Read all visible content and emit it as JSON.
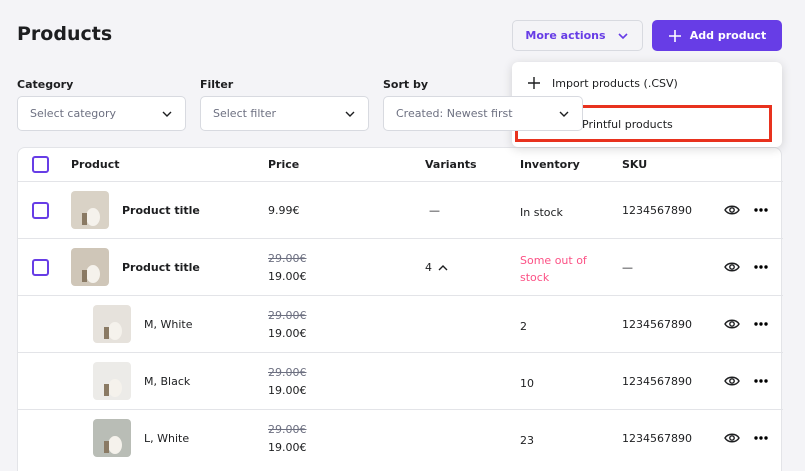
{
  "header": {
    "title": "Products",
    "more_actions": "More actions",
    "add_product": "Add product"
  },
  "filters": [
    {
      "label": "Category",
      "placeholder": "Select category"
    },
    {
      "label": "Filter",
      "placeholder": "Select filter"
    },
    {
      "label": "Sort by",
      "placeholder": "Created: Newest first"
    }
  ],
  "dropdown": {
    "items": [
      "Import products (.CSV)",
      "Sync Printful products"
    ]
  },
  "table": {
    "columns": [
      "Product",
      "Price",
      "Variants",
      "Inventory",
      "SKU"
    ],
    "rows": [
      {
        "name": "Product title",
        "price": "9.99€",
        "variants": "—",
        "inventory": "In stock",
        "sku": "1234567890"
      },
      {
        "name": "Product title",
        "old_price": "29.00€",
        "price": "19.00€",
        "variants": "4",
        "inventory": "Some out of stock",
        "sku": "—"
      },
      {
        "name": "M, White",
        "old_price": "29.00€",
        "price": "19.00€",
        "inventory": "2",
        "sku": "1234567890",
        "variant": true
      },
      {
        "name": "M, Black",
        "old_price": "29.00€",
        "price": "19.00€",
        "inventory": "10",
        "sku": "1234567890",
        "variant": true
      },
      {
        "name": "L, White",
        "old_price": "29.00€",
        "price": "19.00€",
        "inventory": "23",
        "sku": "1234567890",
        "variant": true
      }
    ]
  }
}
